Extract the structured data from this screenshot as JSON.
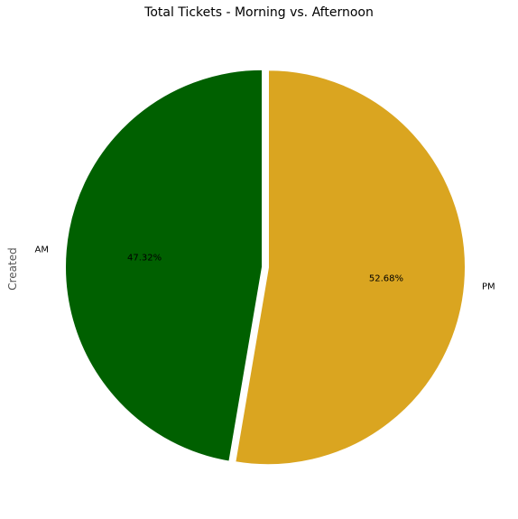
{
  "chart_data": {
    "type": "pie",
    "title": "Total Tickets - Morning vs. Afternoon",
    "ylabel": "Created",
    "categories": [
      "AM",
      "PM"
    ],
    "values": [
      47.32,
      52.68
    ],
    "percent_labels": [
      "47.32%",
      "52.68%"
    ],
    "colors": [
      "#006000",
      "#DAA520"
    ],
    "explode": true,
    "start_angle": "top, counter-clockwise"
  }
}
